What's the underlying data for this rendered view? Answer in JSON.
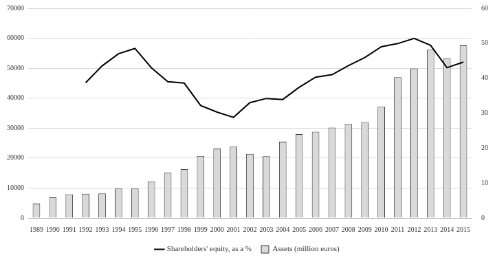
{
  "chart_data": {
    "type": "bar",
    "categories": [
      "1989",
      "1990",
      "1991",
      "1992",
      "1993",
      "1994",
      "1995",
      "1996",
      "1997",
      "1998",
      "1999",
      "2000",
      "2001",
      "2002",
      "2003",
      "2004",
      "2005",
      "2006",
      "2007",
      "2008",
      "2009",
      "2010",
      "2011",
      "2012",
      "2013",
      "2014",
      "2015"
    ],
    "series": [
      {
        "name": "Assets (million euros)",
        "type": "bar",
        "color": "#d9d9d9",
        "values": [
          4800,
          6900,
          7900,
          8100,
          8200,
          9800,
          9800,
          12200,
          15200,
          16300,
          20700,
          23200,
          23800,
          21400,
          20600,
          25500,
          28000,
          28800,
          30200,
          31400,
          32000,
          37100,
          47000,
          49900,
          56200,
          53300,
          57600
        ]
      },
      {
        "name": "Shareholders' equity, as a %",
        "type": "line",
        "color": "#000000",
        "axis": "y2",
        "values": [
          null,
          null,
          null,
          38.7,
          43.5,
          47,
          48.5,
          43,
          39,
          38.6,
          32.2,
          30.3,
          28.8,
          33,
          34.2,
          33.9,
          37.4,
          40.3,
          41,
          43.6,
          45.9,
          49,
          49.9,
          51.4,
          49.4,
          43,
          44.6
        ]
      }
    ],
    "ylim": [
      0,
      70000
    ],
    "yticks": [
      0,
      10000,
      20000,
      30000,
      40000,
      50000,
      60000,
      70000
    ],
    "y2lim": [
      0,
      60
    ],
    "y2ticks": [
      0,
      10,
      20,
      30,
      40,
      50,
      60
    ],
    "grid": true,
    "legend": "bottom"
  }
}
